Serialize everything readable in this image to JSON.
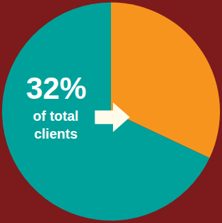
{
  "chart_data": {
    "type": "pie",
    "values": [
      32,
      68
    ],
    "value_labels": [
      "32%",
      null
    ],
    "colors": [
      "#f7941d",
      "#00a19a"
    ],
    "annotation": "of total clients"
  }
}
